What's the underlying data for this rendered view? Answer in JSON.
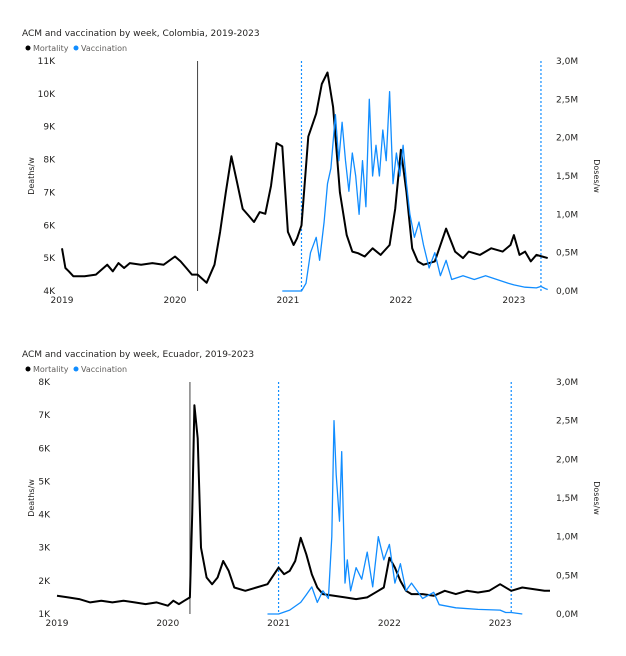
{
  "chart_data": [
    {
      "type": "line",
      "title": "ACM and vaccination by week, Colombia, 2019-2023",
      "legend": [
        "Mortality",
        "Vaccination"
      ],
      "legend_position": "top-left",
      "ylabel": "Deaths/w",
      "y2label": "Doses/w",
      "ylim": [
        4000,
        11000
      ],
      "y2lim": [
        0,
        3000000
      ],
      "yticks": [
        "4K",
        "5K",
        "6K",
        "7K",
        "8K",
        "9K",
        "10K",
        "11K"
      ],
      "y2ticks": [
        "0,0M",
        "0,5M",
        "1,0M",
        "1,5M",
        "2,0M",
        "2,5M",
        "3,0M"
      ],
      "xticks": [
        "2019",
        "2020",
        "2021",
        "2022",
        "2023"
      ],
      "xlim": [
        2019.0,
        2023.32
      ],
      "grid": false,
      "colors": {
        "mortality": "#000000",
        "vaccination": "#118DFF",
        "marker": "#118DFF",
        "event": "#444444"
      },
      "event_line_x": 2020.2,
      "vaccination_start_marker_x": 2021.12,
      "vaccination_end_marker_x": 2023.24,
      "series": [
        {
          "name": "Mortality",
          "axis": "left",
          "x": [
            2019.0,
            2019.03,
            2019.06,
            2019.1,
            2019.2,
            2019.3,
            2019.4,
            2019.45,
            2019.5,
            2019.55,
            2019.6,
            2019.7,
            2019.8,
            2019.9,
            2020.0,
            2020.05,
            2020.1,
            2020.15,
            2020.2,
            2020.28,
            2020.35,
            2020.4,
            2020.45,
            2020.5,
            2020.55,
            2020.6,
            2020.65,
            2020.7,
            2020.75,
            2020.8,
            2020.85,
            2020.9,
            2020.95,
            2021.0,
            2021.05,
            2021.08,
            2021.12,
            2021.18,
            2021.25,
            2021.3,
            2021.35,
            2021.4,
            2021.46,
            2021.52,
            2021.57,
            2021.62,
            2021.68,
            2021.75,
            2021.82,
            2021.9,
            2021.95,
            2022.0,
            2022.05,
            2022.1,
            2022.15,
            2022.2,
            2022.3,
            2022.4,
            2022.48,
            2022.55,
            2022.6,
            2022.7,
            2022.8,
            2022.9,
            2022.97,
            2023.0,
            2023.05,
            2023.1,
            2023.15,
            2023.2,
            2023.25,
            2023.3
          ],
          "values": [
            5300,
            4700,
            4600,
            4450,
            4450,
            4500,
            4800,
            4600,
            4850,
            4700,
            4850,
            4800,
            4850,
            4800,
            5050,
            4900,
            4700,
            4500,
            4500,
            4250,
            4800,
            5800,
            7000,
            8100,
            7300,
            6500,
            6300,
            6100,
            6400,
            6350,
            7200,
            8500,
            8400,
            5800,
            5400,
            5600,
            6000,
            8700,
            9400,
            10300,
            10650,
            9600,
            7000,
            5700,
            5200,
            5150,
            5050,
            5300,
            5100,
            5400,
            6500,
            8300,
            7000,
            5300,
            4900,
            4800,
            4900,
            5900,
            5200,
            5000,
            5200,
            5100,
            5300,
            5200,
            5400,
            5700,
            5100,
            5200,
            4900,
            5100,
            5050,
            5000
          ]
        },
        {
          "name": "Vaccination",
          "axis": "right",
          "x": [
            2020.95,
            2021.12,
            2021.16,
            2021.2,
            2021.25,
            2021.28,
            2021.32,
            2021.35,
            2021.38,
            2021.42,
            2021.45,
            2021.48,
            2021.51,
            2021.54,
            2021.57,
            2021.6,
            2021.63,
            2021.66,
            2021.69,
            2021.72,
            2021.75,
            2021.78,
            2021.81,
            2021.84,
            2021.87,
            2021.9,
            2021.93,
            2021.96,
            2021.99,
            2022.02,
            2022.05,
            2022.08,
            2022.12,
            2022.16,
            2022.2,
            2022.25,
            2022.3,
            2022.35,
            2022.4,
            2022.45,
            2022.55,
            2022.65,
            2022.75,
            2022.85,
            2022.95,
            2023.0,
            2023.1,
            2023.2,
            2023.24,
            2023.28,
            2023.3
          ],
          "values": [
            0,
            0,
            100000,
            500000,
            700000,
            400000,
            900000,
            1400000,
            1600000,
            2300000,
            1700000,
            2200000,
            1700000,
            1300000,
            1800000,
            1500000,
            1000000,
            1700000,
            1100000,
            2500000,
            1500000,
            1900000,
            1500000,
            2100000,
            1700000,
            2600000,
            1400000,
            1800000,
            1500000,
            1900000,
            1400000,
            1000000,
            700000,
            900000,
            600000,
            300000,
            500000,
            200000,
            400000,
            150000,
            200000,
            150000,
            200000,
            150000,
            100000,
            80000,
            50000,
            40000,
            60000,
            30000,
            20000
          ]
        }
      ]
    },
    {
      "type": "line",
      "title": "ACM and vaccination by week, Ecuador, 2019-2023",
      "legend": [
        "Mortality",
        "Vaccination"
      ],
      "legend_position": "top-left",
      "ylabel": "Deaths/w",
      "y2label": "Doses/w",
      "ylim": [
        1000,
        8000
      ],
      "y2lim": [
        0,
        3000000
      ],
      "yticks": [
        "1K",
        "2K",
        "3K",
        "4K",
        "5K",
        "6K",
        "7K",
        "8K"
      ],
      "y2ticks": [
        "0,0M",
        "0,5M",
        "1,0M",
        "1,5M",
        "2,0M",
        "2,5M",
        "3,0M"
      ],
      "xticks": [
        "2019",
        "2020",
        "2021",
        "2022",
        "2023"
      ],
      "xlim": [
        2019.0,
        2023.45
      ],
      "grid": false,
      "colors": {
        "mortality": "#000000",
        "vaccination": "#118DFF",
        "marker": "#118DFF",
        "event": "#444444"
      },
      "event_line_x": 2020.2,
      "vaccination_start_marker_x": 2021.0,
      "vaccination_end_marker_x": 2023.1,
      "series": [
        {
          "name": "Mortality",
          "axis": "left",
          "x": [
            2019.0,
            2019.1,
            2019.2,
            2019.3,
            2019.4,
            2019.5,
            2019.6,
            2019.7,
            2019.8,
            2019.9,
            2020.0,
            2020.05,
            2020.1,
            2020.15,
            2020.2,
            2020.22,
            2020.24,
            2020.27,
            2020.3,
            2020.35,
            2020.4,
            2020.45,
            2020.5,
            2020.55,
            2020.6,
            2020.7,
            2020.8,
            2020.9,
            2021.0,
            2021.05,
            2021.1,
            2021.15,
            2021.2,
            2021.25,
            2021.3,
            2021.35,
            2021.4,
            2021.5,
            2021.6,
            2021.7,
            2021.8,
            2021.9,
            2021.95,
            2022.0,
            2022.05,
            2022.1,
            2022.15,
            2022.2,
            2022.3,
            2022.4,
            2022.5,
            2022.6,
            2022.7,
            2022.8,
            2022.9,
            2023.0,
            2023.1,
            2023.2,
            2023.3,
            2023.4,
            2023.45
          ],
          "values": [
            1550,
            1500,
            1450,
            1350,
            1400,
            1350,
            1400,
            1350,
            1300,
            1350,
            1250,
            1400,
            1300,
            1400,
            1500,
            4000,
            7300,
            6300,
            3000,
            2100,
            1900,
            2100,
            2600,
            2300,
            1800,
            1700,
            1800,
            1900,
            2400,
            2200,
            2300,
            2600,
            3300,
            2800,
            2200,
            1800,
            1600,
            1550,
            1500,
            1450,
            1500,
            1700,
            1800,
            2700,
            2400,
            2000,
            1700,
            1600,
            1600,
            1550,
            1700,
            1600,
            1700,
            1650,
            1700,
            1900,
            1700,
            1800,
            1750,
            1700,
            1700
          ]
        },
        {
          "name": "Vaccination",
          "axis": "right",
          "x": [
            2020.9,
            2021.0,
            2021.1,
            2021.2,
            2021.25,
            2021.3,
            2021.35,
            2021.4,
            2021.45,
            2021.48,
            2021.5,
            2021.52,
            2021.55,
            2021.57,
            2021.6,
            2021.62,
            2021.65,
            2021.7,
            2021.75,
            2021.8,
            2021.85,
            2021.9,
            2021.95,
            2022.0,
            2022.05,
            2022.1,
            2022.15,
            2022.2,
            2022.3,
            2022.4,
            2022.45,
            2022.6,
            2022.8,
            2023.0,
            2023.05,
            2023.1,
            2023.2
          ],
          "values": [
            0,
            0,
            50000,
            150000,
            250000,
            350000,
            150000,
            300000,
            200000,
            1000000,
            2500000,
            1800000,
            1200000,
            2100000,
            400000,
            700000,
            300000,
            600000,
            450000,
            800000,
            350000,
            1000000,
            700000,
            900000,
            400000,
            650000,
            300000,
            400000,
            200000,
            280000,
            120000,
            80000,
            60000,
            50000,
            20000,
            20000,
            0
          ]
        }
      ]
    }
  ]
}
